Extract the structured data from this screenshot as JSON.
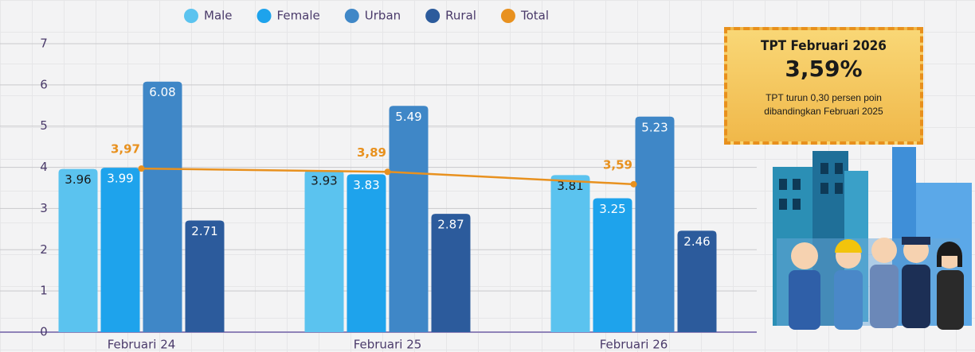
{
  "chart_data": {
    "type": "bar",
    "categories": [
      "Februari 24",
      "Februari 25",
      "Februari 26"
    ],
    "series": [
      {
        "name": "Male",
        "color": "#5bc3ef",
        "values": [
          3.96,
          3.93,
          3.81
        ]
      },
      {
        "name": "Female",
        "color": "#1ea3ec",
        "values": [
          3.99,
          3.83,
          3.25
        ]
      },
      {
        "name": "Urban",
        "color": "#3f87c7",
        "values": [
          6.08,
          5.49,
          5.23
        ]
      },
      {
        "name": "Rural",
        "color": "#2c5b9c",
        "values": [
          2.71,
          2.87,
          2.46
        ]
      },
      {
        "name": "Total",
        "type": "line",
        "color": "#e8911f",
        "values": [
          3.97,
          3.89,
          3.59
        ],
        "value_labels": [
          "3,97",
          "3,89",
          "3,59"
        ]
      }
    ],
    "ylim": [
      0,
      7
    ],
    "yticks": [
      0,
      1,
      2,
      3,
      4,
      5,
      6,
      7
    ],
    "grid": true,
    "legend": "top"
  },
  "callout": {
    "title": "TPT Februari 2026",
    "value": "3,59%",
    "text": "TPT turun 0,30 persen poin dibandingkan Februari 2025"
  }
}
